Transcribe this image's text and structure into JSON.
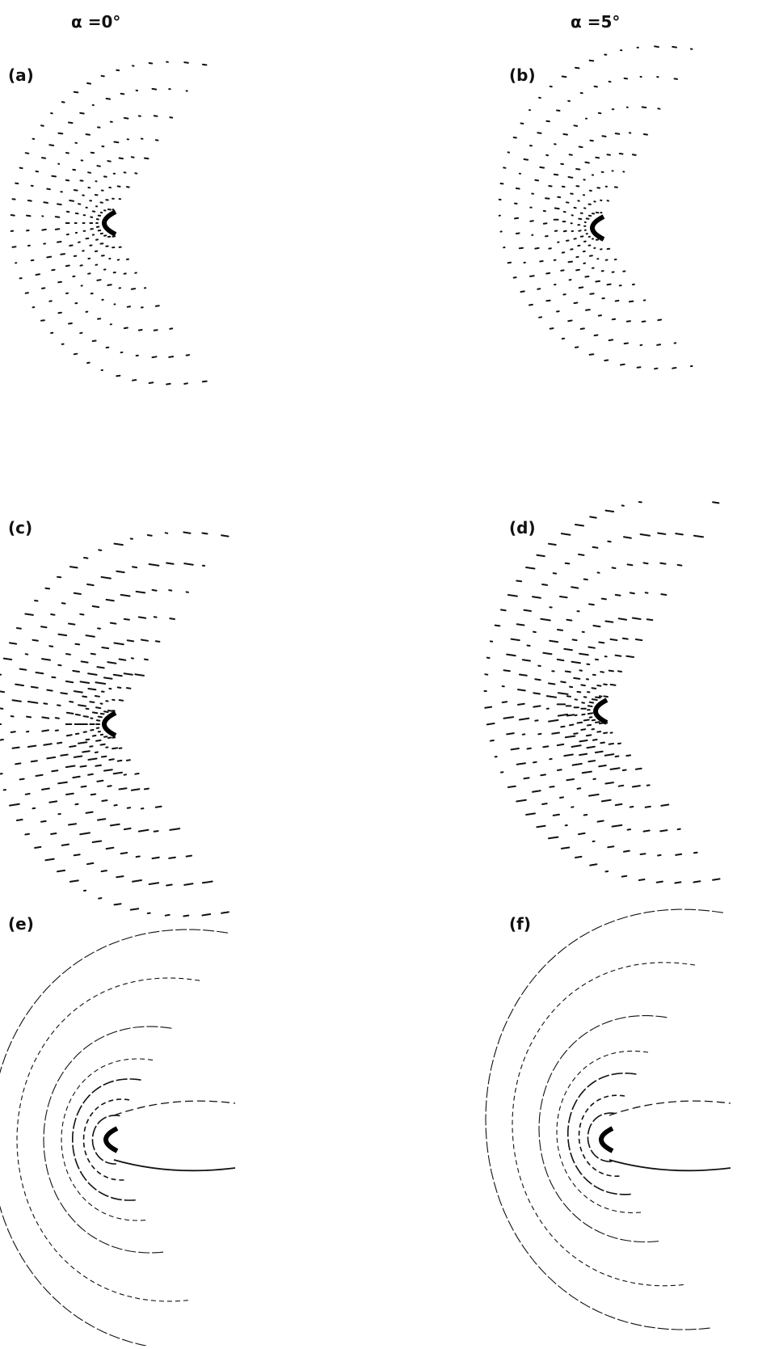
{
  "header": {
    "left": "α =0°",
    "right": "α =5°"
  },
  "panels": [
    {
      "label": "(a)"
    },
    {
      "label": "(b)"
    },
    {
      "label": "(c)"
    },
    {
      "label": "(d)"
    },
    {
      "label": "(e)"
    },
    {
      "label": "(f)"
    }
  ]
}
